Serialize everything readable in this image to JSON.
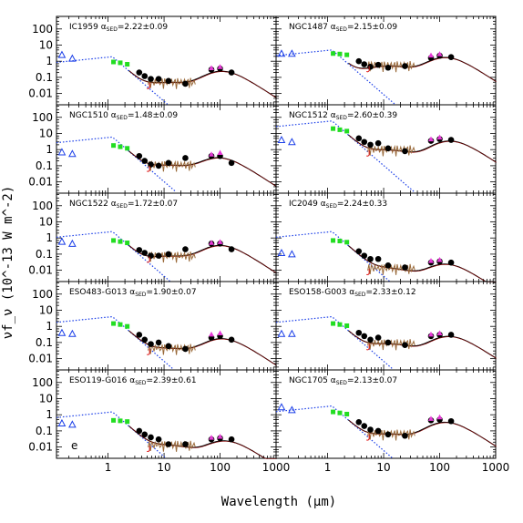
{
  "chart_data": {
    "type": "scatter",
    "xlabel": "Wavelength (μm)",
    "ylabel": "νf_ν (10^-13 W m^-2)",
    "x_scale": "log",
    "y_scale": "log",
    "xlim": [
      0.12,
      1000
    ],
    "ylim": [
      0.002,
      600
    ],
    "x_tick_labels": [
      "1",
      "10",
      "100",
      "1000"
    ],
    "y_tick_labels": [
      "100",
      "10",
      "1",
      "0.1",
      "0.01"
    ],
    "annotation_letter": "e",
    "colors": {
      "photometry": "#000000",
      "nir": "#22dd22",
      "uv": "#1a3ee8",
      "stellar_model": "#1a3ee8",
      "sed_model": "#8b0000",
      "spectrum": "#9a6a3a",
      "mips": "#e63ad6"
    },
    "panels": [
      {
        "name": "IC1959",
        "alpha": "2.22±0.09",
        "uv": [
          [
            0.15,
            2.5
          ],
          [
            0.23,
            1.5
          ]
        ],
        "nir": [
          [
            1.25,
            0.9
          ],
          [
            1.65,
            0.8
          ],
          [
            2.2,
            0.65
          ]
        ],
        "phot": [
          [
            3.6,
            0.2
          ],
          [
            4.5,
            0.12
          ],
          [
            5.8,
            0.08
          ],
          [
            8.0,
            0.08
          ],
          [
            12,
            0.06
          ],
          [
            24,
            0.04
          ],
          [
            70,
            0.3
          ],
          [
            100,
            0.35
          ],
          [
            160,
            0.2
          ]
        ],
        "mips": [
          [
            70,
            0.3
          ],
          [
            100,
            0.35
          ]
        ],
        "stellar_peak": 1.9,
        "mir": 0.045,
        "fir": 0.35,
        "fir_peak": 85
      },
      {
        "name": "NGC1487",
        "alpha": "2.15±0.09",
        "uv": [
          [
            0.15,
            3
          ],
          [
            0.23,
            3
          ]
        ],
        "nir": [
          [
            1.25,
            3
          ],
          [
            1.65,
            2.8
          ],
          [
            2.2,
            2.5
          ]
        ],
        "phot": [
          [
            3.6,
            1
          ],
          [
            4.5,
            0.65
          ],
          [
            5.8,
            0.45
          ],
          [
            8.0,
            0.6
          ],
          [
            12,
            0.4
          ],
          [
            24,
            0.5
          ],
          [
            70,
            1.6
          ],
          [
            100,
            2.2
          ],
          [
            160,
            1.8
          ]
        ],
        "mips": [
          [
            70,
            1.8
          ],
          [
            100,
            2.2
          ]
        ],
        "stellar_peak": 5,
        "mir": 0.5,
        "fir": 2.5,
        "fir_peak": 100
      },
      {
        "name": "NGC1510",
        "alpha": "1.48±0.09",
        "uv": [
          [
            0.15,
            0.7
          ],
          [
            0.23,
            0.55
          ]
        ],
        "nir": [
          [
            1.25,
            1.8
          ],
          [
            1.65,
            1.5
          ],
          [
            2.2,
            1.2
          ]
        ],
        "phot": [
          [
            3.6,
            0.4
          ],
          [
            4.5,
            0.2
          ],
          [
            5.8,
            0.12
          ],
          [
            8.0,
            0.1
          ],
          [
            12,
            0.15
          ],
          [
            24,
            0.3
          ],
          [
            70,
            0.4
          ],
          [
            100,
            0.4
          ],
          [
            160,
            0.15
          ]
        ],
        "mips": [
          [
            70,
            0.4
          ],
          [
            100,
            0.5
          ]
        ],
        "stellar_peak": 6,
        "mir": 0.1,
        "fir": 0.45,
        "fir_peak": 75
      },
      {
        "name": "NGC1512",
        "alpha": "2.60±0.39",
        "uv": [
          [
            0.15,
            4
          ],
          [
            0.23,
            3
          ]
        ],
        "nir": [
          [
            1.25,
            20
          ],
          [
            1.65,
            17
          ],
          [
            2.2,
            14
          ]
        ],
        "phot": [
          [
            3.6,
            5
          ],
          [
            4.5,
            3
          ],
          [
            5.8,
            2
          ],
          [
            8.0,
            2.5
          ],
          [
            12,
            1.2
          ],
          [
            24,
            0.8
          ],
          [
            70,
            3.5
          ],
          [
            100,
            4.5
          ],
          [
            160,
            4
          ]
        ],
        "mips": [
          [
            70,
            3.5
          ],
          [
            100,
            4.5
          ]
        ],
        "stellar_peak": 60,
        "mir": 0.9,
        "fir": 5,
        "fir_peak": 120
      },
      {
        "name": "NGC1522",
        "alpha": "1.72±0.07",
        "uv": [
          [
            0.15,
            0.6
          ],
          [
            0.23,
            0.45
          ]
        ],
        "nir": [
          [
            1.25,
            0.7
          ],
          [
            1.65,
            0.6
          ],
          [
            2.2,
            0.5
          ]
        ],
        "phot": [
          [
            3.6,
            0.18
          ],
          [
            4.5,
            0.12
          ],
          [
            5.8,
            0.08
          ],
          [
            8.0,
            0.08
          ],
          [
            12,
            0.1
          ],
          [
            24,
            0.2
          ],
          [
            70,
            0.45
          ],
          [
            100,
            0.45
          ],
          [
            160,
            0.2
          ]
        ],
        "mips": [
          [
            70,
            0.4
          ],
          [
            100,
            0.45
          ]
        ],
        "stellar_peak": 2.5,
        "mir": 0.07,
        "fir": 0.5,
        "fir_peak": 80
      },
      {
        "name": "IC2049",
        "alpha": "2.24±0.33",
        "uv": [
          [
            0.15,
            0.12
          ],
          [
            0.23,
            0.1
          ]
        ],
        "nir": [
          [
            1.25,
            0.7
          ],
          [
            1.65,
            0.65
          ],
          [
            2.2,
            0.55
          ]
        ],
        "phot": [
          [
            3.6,
            0.15
          ],
          [
            4.5,
            0.08
          ],
          [
            5.8,
            0.05
          ],
          [
            8.0,
            0.05
          ],
          [
            12,
            0.02
          ],
          [
            24,
            0.015
          ],
          [
            70,
            0.03
          ],
          [
            100,
            0.035
          ],
          [
            160,
            0.03
          ]
        ],
        "mips": [
          [
            70,
            0.03
          ],
          [
            100,
            0.035
          ]
        ],
        "stellar_peak": 2.5,
        "mir": 0.012,
        "fir": 0.035,
        "fir_peak": 100
      },
      {
        "name": "ESO483-G013",
        "alpha": "1.90±0.07",
        "uv": [
          [
            0.15,
            0.4
          ],
          [
            0.23,
            0.35
          ]
        ],
        "nir": [
          [
            1.25,
            1.5
          ],
          [
            1.65,
            1.3
          ],
          [
            2.2,
            1.0
          ]
        ],
        "phot": [
          [
            3.6,
            0.3
          ],
          [
            4.5,
            0.15
          ],
          [
            5.8,
            0.08
          ],
          [
            8.0,
            0.1
          ],
          [
            12,
            0.06
          ],
          [
            24,
            0.04
          ],
          [
            70,
            0.2
          ],
          [
            100,
            0.25
          ],
          [
            160,
            0.15
          ]
        ],
        "mips": [
          [
            70,
            0.25
          ],
          [
            100,
            0.3
          ]
        ],
        "stellar_peak": 4,
        "mir": 0.04,
        "fir": 0.25,
        "fir_peak": 85
      },
      {
        "name": "ESO158-G003",
        "alpha": "2.33±0.12",
        "uv": [
          [
            0.15,
            0.35
          ],
          [
            0.23,
            0.35
          ]
        ],
        "nir": [
          [
            1.25,
            1.5
          ],
          [
            1.65,
            1.3
          ],
          [
            2.2,
            1.1
          ]
        ],
        "phot": [
          [
            3.6,
            0.4
          ],
          [
            4.5,
            0.25
          ],
          [
            5.8,
            0.15
          ],
          [
            8.0,
            0.2
          ],
          [
            12,
            0.1
          ],
          [
            24,
            0.07
          ],
          [
            70,
            0.25
          ],
          [
            100,
            0.3
          ],
          [
            160,
            0.3
          ]
        ],
        "mips": [
          [
            70,
            0.25
          ],
          [
            100,
            0.3
          ]
        ],
        "stellar_peak": 4,
        "mir": 0.08,
        "fir": 0.35,
        "fir_peak": 115
      },
      {
        "name": "ESO119-G016",
        "alpha": "2.39±0.61",
        "uv": [
          [
            0.15,
            0.3
          ],
          [
            0.23,
            0.25
          ]
        ],
        "nir": [
          [
            1.25,
            0.45
          ],
          [
            1.65,
            0.42
          ],
          [
            2.2,
            0.38
          ]
        ],
        "phot": [
          [
            3.6,
            0.1
          ],
          [
            4.5,
            0.06
          ],
          [
            5.8,
            0.04
          ],
          [
            8.0,
            0.03
          ],
          [
            12,
            0.015
          ],
          [
            24,
            0.015
          ],
          [
            70,
            0.03
          ],
          [
            100,
            0.035
          ],
          [
            160,
            0.03
          ]
        ],
        "mips": [
          [
            70,
            0.03
          ],
          [
            100,
            0.035
          ]
        ],
        "stellar_peak": 1.5,
        "mir": 0.012,
        "fir": 0.035,
        "fir_peak": 95
      },
      {
        "name": "NGC1705",
        "alpha": "2.13±0.07",
        "uv": [
          [
            0.15,
            3
          ],
          [
            0.23,
            2
          ]
        ],
        "nir": [
          [
            1.25,
            1.5
          ],
          [
            1.65,
            1.3
          ],
          [
            2.2,
            1.1
          ]
        ],
        "phot": [
          [
            3.6,
            0.35
          ],
          [
            4.5,
            0.2
          ],
          [
            5.8,
            0.12
          ],
          [
            8.0,
            0.1
          ],
          [
            12,
            0.06
          ],
          [
            24,
            0.05
          ],
          [
            70,
            0.45
          ],
          [
            100,
            0.5
          ],
          [
            160,
            0.4
          ]
        ],
        "mips": [
          [
            70,
            0.45
          ],
          [
            100,
            0.55
          ]
        ],
        "stellar_peak": 3.5,
        "mir": 0.06,
        "fir": 0.5,
        "fir_peak": 100
      }
    ]
  }
}
